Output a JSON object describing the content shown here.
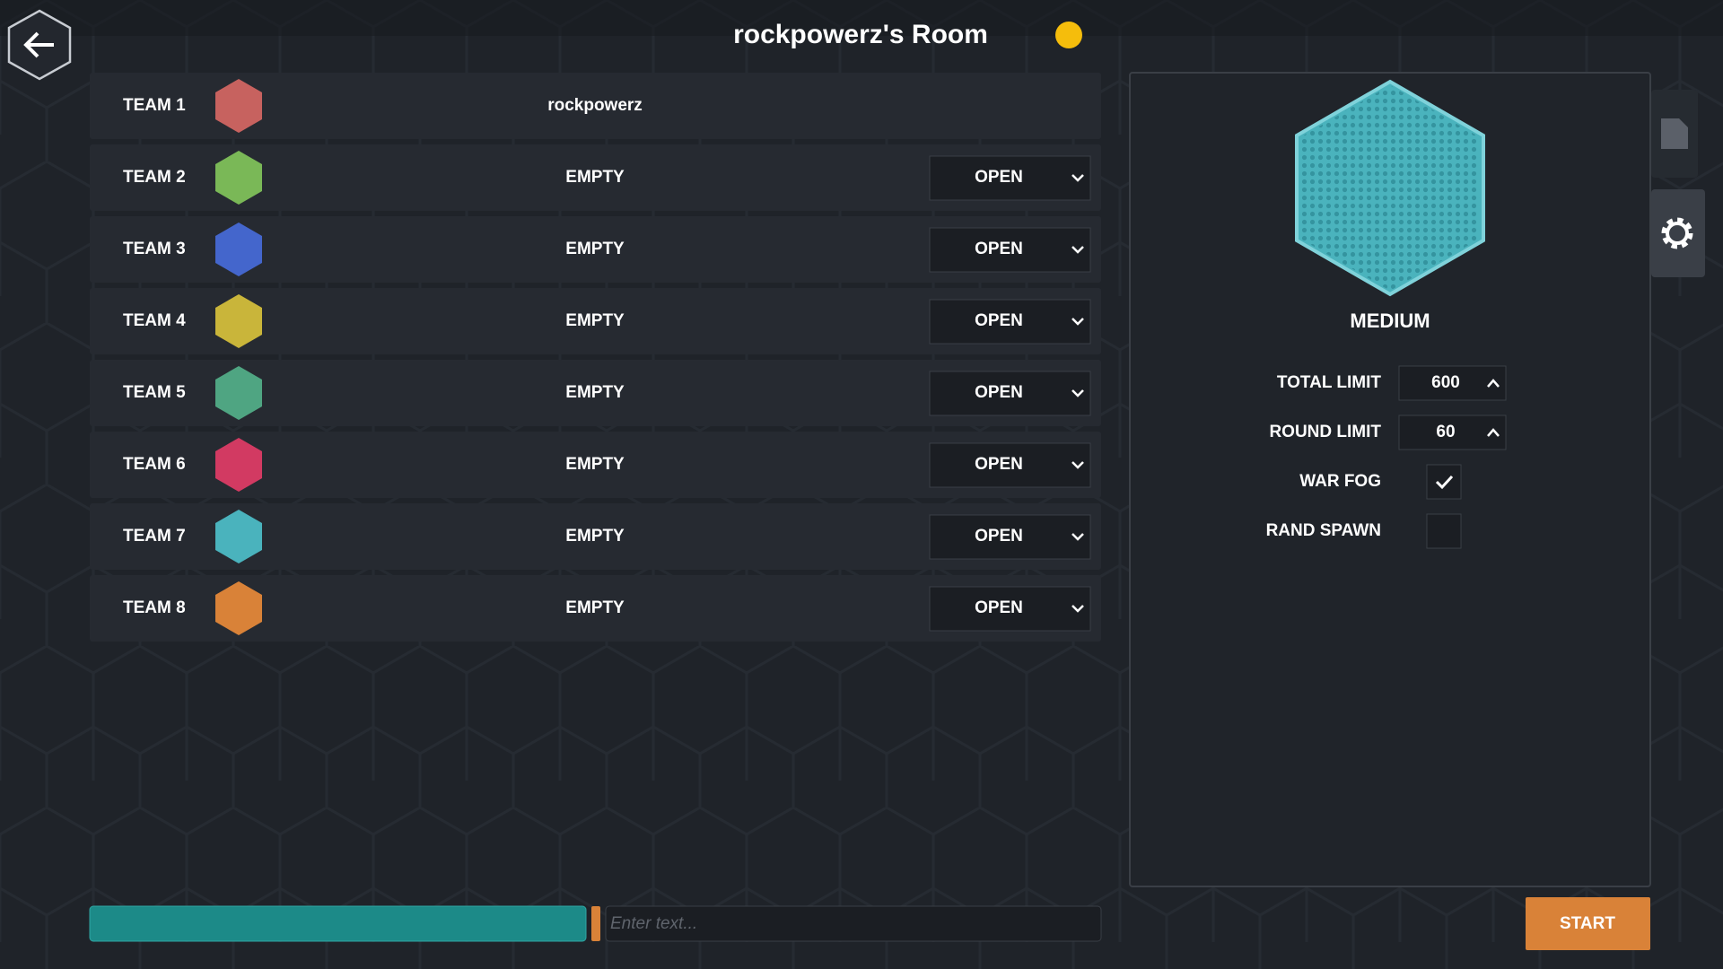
{
  "header": {
    "title": "rockpowerz's Room"
  },
  "teams": [
    {
      "name": "TEAM 1",
      "color": "#c7625f",
      "player": "rockpowerz"
    },
    {
      "name": "TEAM 2",
      "color": "#7ab857",
      "player": "EMPTY",
      "slot": "OPEN"
    },
    {
      "name": "TEAM 3",
      "color": "#4466cc",
      "player": "EMPTY",
      "slot": "OPEN"
    },
    {
      "name": "TEAM 4",
      "color": "#c9b53a",
      "player": "EMPTY",
      "slot": "OPEN"
    },
    {
      "name": "TEAM 5",
      "color": "#4fa582",
      "player": "EMPTY",
      "slot": "OPEN"
    },
    {
      "name": "TEAM 6",
      "color": "#d23a62",
      "player": "EMPTY",
      "slot": "OPEN"
    },
    {
      "name": "TEAM 7",
      "color": "#4ab3bd",
      "player": "EMPTY",
      "slot": "OPEN"
    },
    {
      "name": "TEAM 8",
      "color": "#d98238",
      "player": "EMPTY",
      "slot": "OPEN"
    }
  ],
  "settings": {
    "map_size": "MEDIUM",
    "total_limit": {
      "label": "TOTAL LIMIT",
      "value": 600
    },
    "round_limit": {
      "label": "ROUND LIMIT",
      "value": 60
    },
    "war_fog": {
      "label": "WAR FOG",
      "checked": true
    },
    "rand_spawn": {
      "label": "RAND SPAWN",
      "checked": false
    }
  },
  "chat": {
    "placeholder": "Enter text..."
  },
  "start_button": "START"
}
